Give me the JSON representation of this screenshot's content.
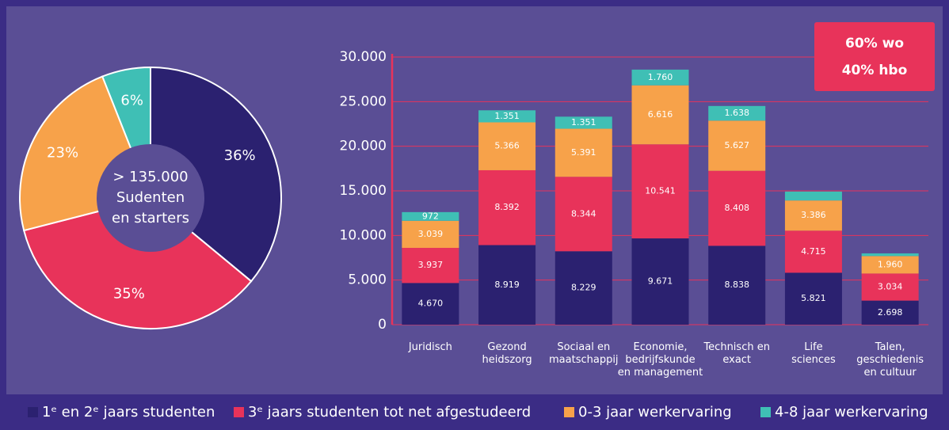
{
  "chart_data": [
    {
      "type": "pie",
      "center_text": [
        "> 135.000",
        "Sudenten",
        "en starters"
      ],
      "values": [
        36,
        35,
        23,
        6
      ],
      "value_labels": [
        "36%",
        "35%",
        "23%",
        "6%"
      ],
      "colors": [
        "#2b2170",
        "#e8335a",
        "#f7a24a",
        "#3fbfb5"
      ]
    },
    {
      "type": "stacked_bar",
      "annotation": [
        "60% wo",
        "40% hbo"
      ],
      "categories": [
        "Juridisch",
        "Gezond\nheidszorg",
        "Sociaal en\nmaatschappij",
        "Economie,\nbedrijfskunde\nen management",
        "Technisch en\nexact",
        "Life\nsciences",
        "Talen,\ngeschiedenis\nen cultuur"
      ],
      "series": [
        {
          "name": "1ᵉ en 2ᵉ jaars studenten",
          "color": "#2b2170",
          "values": [
            4670,
            8919,
            8229,
            9671,
            8838,
            5821,
            2698
          ],
          "value_labels": [
            "4.670",
            "8.919",
            "8.229",
            "9.671",
            "8.838",
            "5.821",
            "2.698"
          ]
        },
        {
          "name": "3ᵉ jaars studenten tot net afgestudeerd",
          "color": "#e8335a",
          "values": [
            3937,
            8392,
            8344,
            10541,
            8408,
            4715,
            3034
          ],
          "value_labels": [
            "3.937",
            "8.392",
            "8.344",
            "10.541",
            "8.408",
            "4.715",
            "3.034"
          ]
        },
        {
          "name": "0-3 jaar werkervaring",
          "color": "#f7a24a",
          "values": [
            3039,
            5366,
            5391,
            6616,
            5627,
            3386,
            1960
          ],
          "value_labels": [
            "3.039",
            "5.366",
            "5.391",
            "6.616",
            "5.627",
            "3.386",
            "1.960"
          ]
        },
        {
          "name": "4-8 jaar werkervaring",
          "color": "#3fbfb5",
          "values": [
            972,
            1351,
            1351,
            1760,
            1638,
            1000,
            300
          ],
          "value_labels": [
            "972",
            "1.351",
            "1.351",
            "1.760",
            "1.638",
            null,
            null
          ]
        }
      ],
      "ylim": [
        0,
        30000
      ],
      "yticks": [
        0,
        {
          "value": 5000,
          "label": "5.000"
        },
        {
          "value": 10000,
          "label": "10.000"
        },
        {
          "value": 15000,
          "label": "15.000"
        },
        {
          "value": 20000,
          "label": "20.000"
        },
        {
          "value": 25000,
          "label": "25.000"
        },
        {
          "value": 30000,
          "label": "30.000"
        }
      ],
      "grid": true,
      "grid_color": "#e8335a"
    }
  ]
}
